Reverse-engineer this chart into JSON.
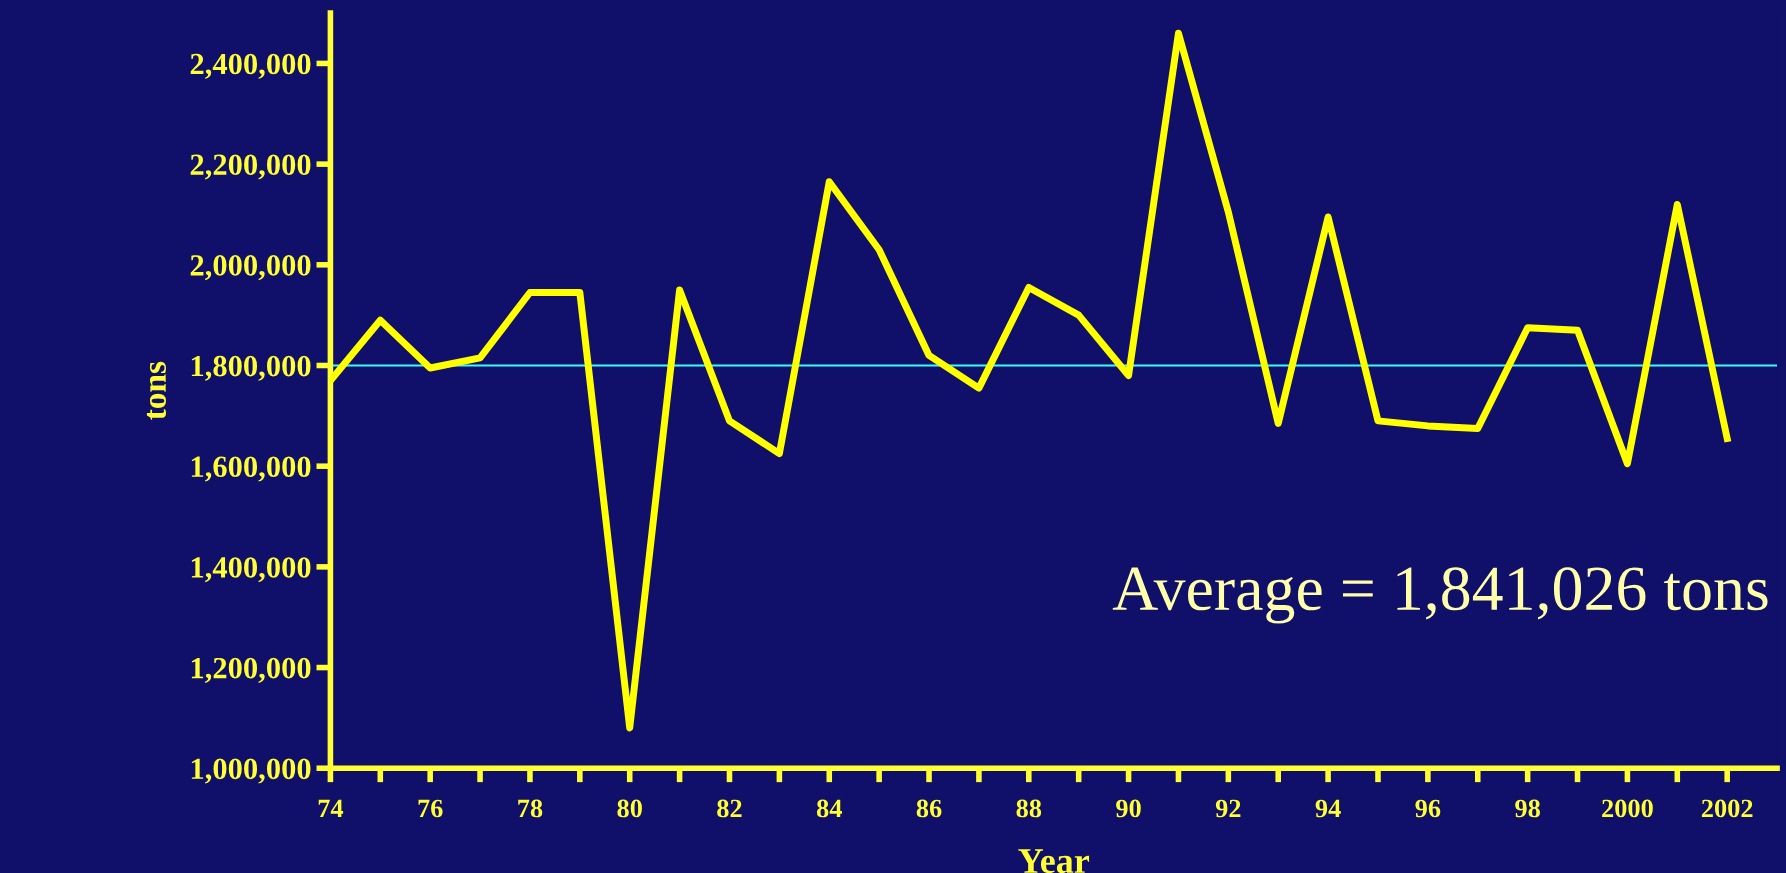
{
  "chart_data": {
    "type": "line",
    "xlabel": "Year",
    "ylabel": "tons",
    "x": [
      1974,
      1975,
      1976,
      1977,
      1978,
      1979,
      1980,
      1981,
      1982,
      1983,
      1984,
      1985,
      1986,
      1987,
      1988,
      1989,
      1990,
      1991,
      1992,
      1993,
      1994,
      1995,
      1996,
      1997,
      1998,
      1999,
      2000,
      2001,
      2002
    ],
    "series": [
      {
        "color": "#ffff00",
        "values": [
          1770000,
          1890000,
          1795000,
          1815000,
          1945000,
          1945000,
          1080000,
          1950000,
          1690000,
          1625000,
          2165000,
          2030000,
          1820000,
          1755000,
          1955000,
          1900000,
          1780000,
          2460000,
          2105000,
          1685000,
          2095000,
          1690000,
          1680000,
          1675000,
          1875000,
          1870000,
          1605000,
          2120000,
          1655000
        ]
      }
    ],
    "xlim": [
      1974,
      2003
    ],
    "xticks": [
      {
        "value": 1974,
        "label": "74"
      },
      {
        "value": 1975,
        "label": null
      },
      {
        "value": 1976,
        "label": "76"
      },
      {
        "value": 1977,
        "label": null
      },
      {
        "value": 1978,
        "label": "78"
      },
      {
        "value": 1979,
        "label": null
      },
      {
        "value": 1980,
        "label": "80"
      },
      {
        "value": 1981,
        "label": null
      },
      {
        "value": 1982,
        "label": "82"
      },
      {
        "value": 1983,
        "label": null
      },
      {
        "value": 1984,
        "label": "84"
      },
      {
        "value": 1985,
        "label": null
      },
      {
        "value": 1986,
        "label": "86"
      },
      {
        "value": 1987,
        "label": null
      },
      {
        "value": 1988,
        "label": "88"
      },
      {
        "value": 1989,
        "label": null
      },
      {
        "value": 1990,
        "label": "90"
      },
      {
        "value": 1991,
        "label": null
      },
      {
        "value": 1992,
        "label": "92"
      },
      {
        "value": 1993,
        "label": null
      },
      {
        "value": 1994,
        "label": "94"
      },
      {
        "value": 1995,
        "label": null
      },
      {
        "value": 1996,
        "label": "96"
      },
      {
        "value": 1997,
        "label": null
      },
      {
        "value": 1998,
        "label": "98"
      },
      {
        "value": 1999,
        "label": null
      },
      {
        "value": 2000,
        "label": "2000"
      },
      {
        "value": 2001,
        "label": null
      },
      {
        "value": 2002,
        "label": "2002"
      }
    ],
    "ylim": [
      1000000,
      2500000
    ],
    "yticks": [
      {
        "value": 1000000,
        "label": "1,000,000"
      },
      {
        "value": 1200000,
        "label": "1,200,000"
      },
      {
        "value": 1400000,
        "label": "1,400,000"
      },
      {
        "value": 1600000,
        "label": "1,600,000"
      },
      {
        "value": 1800000,
        "label": "1,800,000"
      },
      {
        "value": 2000000,
        "label": "2,000,000"
      },
      {
        "value": 2200000,
        "label": "2,200,000"
      },
      {
        "value": 2400000,
        "label": "2,400,000"
      }
    ],
    "ref_lines": [
      {
        "axis": "y",
        "value": 1800000,
        "color": "#33ffff",
        "line_style": "solid"
      }
    ],
    "annotations": [
      "Average = 1,841,026 tons"
    ],
    "grid": false,
    "legend": false,
    "marker": "none",
    "line_style": "solid"
  }
}
